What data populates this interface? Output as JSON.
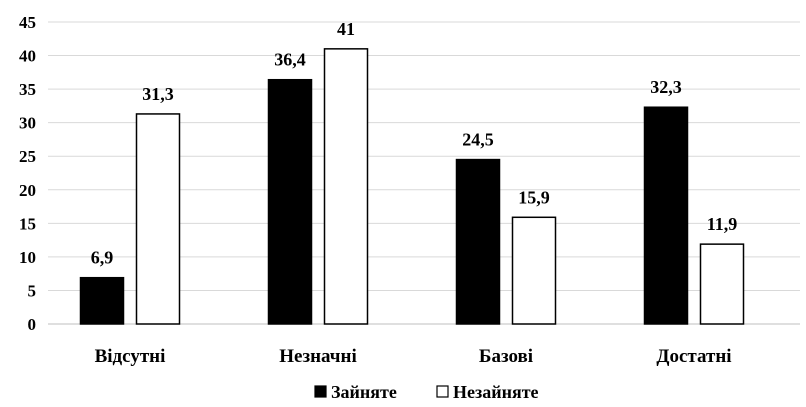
{
  "chart_data": {
    "type": "bar",
    "categories": [
      "Відсутні",
      "Незначні",
      "Базові",
      "Достатні"
    ],
    "series": [
      {
        "name": "Зайняте",
        "values": [
          6.9,
          36.4,
          24.5,
          32.3
        ],
        "labels": [
          "6,9",
          "36,4",
          "24,5",
          "32,3"
        ],
        "color": "#000000"
      },
      {
        "name": "Незайняте",
        "values": [
          31.3,
          41,
          15.9,
          11.9
        ],
        "labels": [
          "31,3",
          "41",
          "15,9",
          "11,9"
        ],
        "color": "#ffffff"
      }
    ],
    "ylim": [
      0,
      45
    ],
    "yticks": [
      0,
      5,
      10,
      15,
      20,
      25,
      30,
      35,
      40,
      45
    ],
    "grid": true,
    "legend_position": "bottom",
    "title": "",
    "xlabel": "",
    "ylabel": ""
  }
}
